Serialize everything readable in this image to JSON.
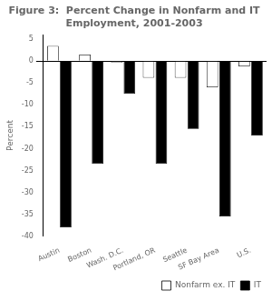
{
  "chart_data": {
    "type": "bar",
    "title": "Figure 3:  Percent Change in Nonfarm and IT\nEmployment, 2001-2003",
    "y_label": "Percent",
    "categories": [
      "Austin",
      "Boston",
      "Wash. D.C.",
      "Portland, OR",
      "Seattle",
      "SF Bay Area",
      "U.S."
    ],
    "series": [
      {
        "name": "Nonfarm ex. IT",
        "color": "#ffffff",
        "values": [
          3.5,
          1.5,
          -0.3,
          -3.8,
          -3.8,
          -6.0,
          -1.2
        ]
      },
      {
        "name": "IT",
        "color": "#000000",
        "values": [
          -38.0,
          -23.5,
          -7.5,
          -23.5,
          -15.5,
          -35.5,
          -17.0
        ]
      }
    ],
    "ylim": [
      -40,
      6
    ],
    "yticks": [
      5,
      0,
      -5,
      -10,
      -15,
      -20,
      -25,
      -30,
      -35,
      -40
    ],
    "grid": false,
    "legend": "lower right"
  }
}
